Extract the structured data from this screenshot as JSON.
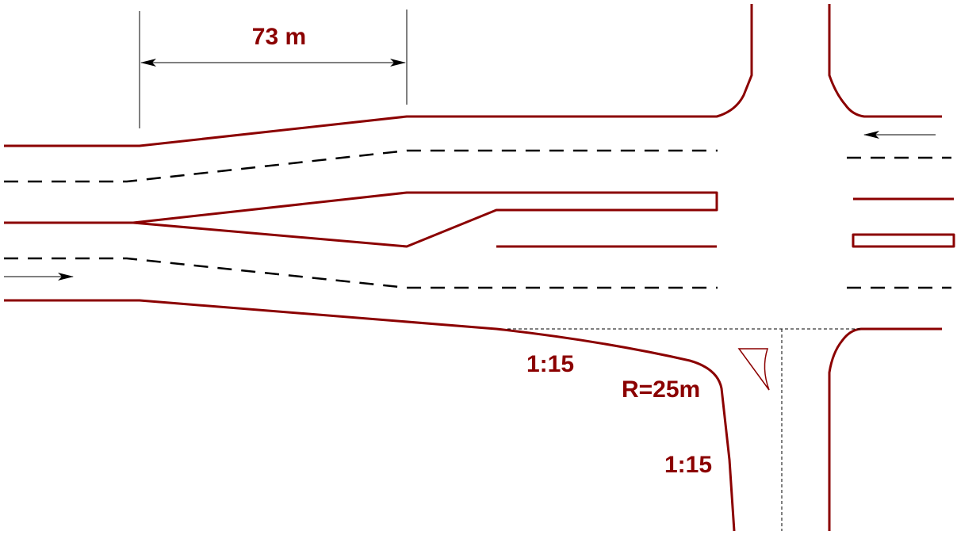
{
  "dimension": {
    "text": "73 m"
  },
  "annotations": {
    "taper_slope_1": "1:15",
    "curve_radius": "R=25m",
    "taper_slope_2": "1:15"
  },
  "colors": {
    "road_edge": "#8b0000",
    "lane_marking": "#000000",
    "label": "#8b0000"
  }
}
